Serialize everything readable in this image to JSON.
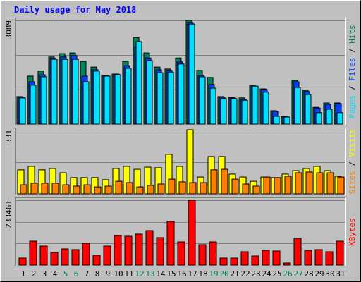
{
  "chart_data": [
    {
      "type": "bar",
      "title": "Daily usage for May 2018",
      "ylim": [
        0,
        3089
      ],
      "yticks": [
        3089
      ],
      "grid_divisions": 3,
      "legend_separator": " / ",
      "series": [
        {
          "name": "Hits",
          "color": "#00805c",
          "values": [
            820,
            1430,
            1580,
            2000,
            2100,
            2120,
            1870,
            1700,
            1450,
            1490,
            1870,
            2580,
            2120,
            1700,
            1640,
            1970,
            3089,
            1600,
            1390,
            820,
            800,
            780,
            1160,
            1050,
            400,
            230,
            1300,
            1010,
            500,
            630,
            630
          ]
        },
        {
          "name": "Files",
          "color": "#0040ff",
          "values": [
            800,
            1260,
            1470,
            1960,
            2000,
            2040,
            1430,
            1620,
            1450,
            1490,
            1740,
            2300,
            1970,
            1620,
            1600,
            1850,
            3030,
            1450,
            1180,
            800,
            780,
            740,
            1130,
            1030,
            380,
            230,
            1260,
            970,
            480,
            590,
            610
          ]
        },
        {
          "name": "Pages",
          "color": "#00e0ff",
          "values": [
            780,
            1160,
            1410,
            1930,
            1930,
            1930,
            1260,
            1580,
            1430,
            1470,
            1660,
            2460,
            1890,
            1530,
            1550,
            1790,
            2980,
            1410,
            1070,
            760,
            760,
            710,
            1130,
            950,
            230,
            210,
            1090,
            880,
            340,
            440,
            340
          ]
        }
      ]
    },
    {
      "type": "bar",
      "ylim": [
        0,
        331
      ],
      "yticks": [
        331
      ],
      "grid_divisions": 2,
      "legend_separator": " / ",
      "series": [
        {
          "name": "Visits",
          "color": "#ffff00",
          "values": [
            124,
            142,
            124,
            131,
            109,
            84,
            84,
            84,
            73,
            131,
            142,
            127,
            138,
            135,
            204,
            142,
            331,
            87,
            193,
            193,
            102,
            87,
            65,
            87,
            84,
            102,
            120,
            131,
            142,
            120,
            91
          ]
        },
        {
          "name": "Sites",
          "color": "#ff8000",
          "values": [
            47,
            55,
            55,
            55,
            47,
            40,
            47,
            36,
            40,
            65,
            58,
            36,
            44,
            51,
            76,
            62,
            58,
            58,
            124,
            127,
            76,
            51,
            40,
            87,
            84,
            91,
            109,
            113,
            109,
            109,
            87
          ]
        }
      ]
    },
    {
      "type": "bar",
      "ylim": [
        0,
        233461
      ],
      "yticks": [
        233461
      ],
      "grid_divisions": 3,
      "legend_separator": " / ",
      "categories": [
        "1",
        "2",
        "3",
        "4",
        "5",
        "6",
        "7",
        "8",
        "9",
        "10",
        "11",
        "12",
        "13",
        "14",
        "15",
        "16",
        "17",
        "18",
        "19",
        "20",
        "21",
        "22",
        "23",
        "24",
        "25",
        "26",
        "27",
        "28",
        "29",
        "30",
        "31"
      ],
      "weekend_categories": [
        "5",
        "6",
        "12",
        "13",
        "19",
        "20",
        "26",
        "27"
      ],
      "category_color": "#000000",
      "weekend_color": "#00805c",
      "series": [
        {
          "name": "KBytes",
          "color": "#ff0000",
          "values": [
            25400,
            86300,
            68500,
            45700,
            58400,
            55800,
            78700,
            35500,
            68500,
            106600,
            104100,
            111700,
            124400,
            99000,
            157400,
            83700,
            233461,
            73600,
            83700,
            25400,
            25400,
            48200,
            33000,
            53300,
            50800,
            7600,
            96400,
            53300,
            55800,
            48200,
            86300
          ]
        }
      ]
    }
  ]
}
